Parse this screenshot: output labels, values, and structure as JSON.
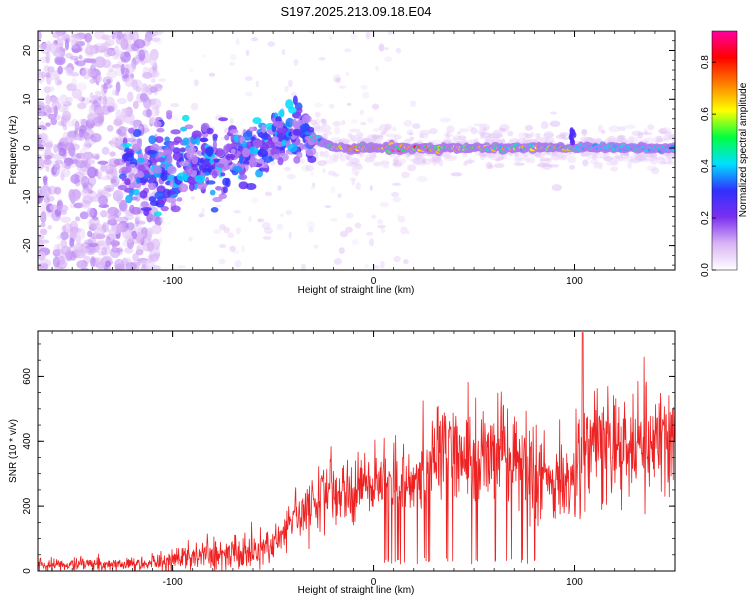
{
  "title": "S197.2025.213.09.18.E04",
  "chart_data": [
    {
      "type": "heatmap",
      "name": "spectrogram",
      "xlabel": "Height of straight line (km)",
      "ylabel": "Frequency (Hz)",
      "xlim": [
        -167,
        150
      ],
      "ylim": [
        -25,
        24
      ],
      "xticks": [
        -100,
        0,
        100
      ],
      "yticks": [
        -20,
        -10,
        0,
        10,
        20
      ],
      "colorbar": {
        "label": "Normalized spectral amplitude",
        "range": [
          0,
          0.92
        ],
        "ticks": [
          0.0,
          0.2,
          0.4,
          0.6,
          0.8
        ],
        "tick_labels": [
          "0.0",
          "0.2",
          "0.4",
          "0.6",
          "0.8"
        ],
        "colormap": [
          "#ffffff",
          "#d9b3f5",
          "#7b2ff0",
          "#3030ff",
          "#00e0ff",
          "#00ff40",
          "#ffff00",
          "#ff8000",
          "#ff0000",
          "#ff00a0"
        ]
      },
      "ridge": {
        "x": [
          -125,
          -100,
          -75,
          -55,
          -40,
          -30,
          -20,
          0,
          50,
          100,
          150
        ],
        "y": [
          -4.5,
          -3.5,
          -2.5,
          0,
          4,
          2,
          0,
          0,
          0,
          0,
          0
        ]
      },
      "grid": false
    },
    {
      "type": "line",
      "name": "snr",
      "xlabel": "Height of straight line (km)",
      "ylabel": "SNR (10 * v/v)",
      "xlim": [
        -167,
        150
      ],
      "ylim": [
        0,
        740
      ],
      "xticks": [
        -100,
        0,
        100
      ],
      "yticks": [
        0,
        200,
        400,
        600
      ],
      "color": "#ee2222",
      "series": [
        {
          "x": [
            -167,
            -150,
            -130,
            -110,
            -100,
            -90,
            -80,
            -70,
            -60,
            -50,
            -45,
            -40,
            -35,
            -30,
            -25,
            -20,
            -15,
            -10,
            -5,
            0,
            5,
            10,
            15,
            20,
            25,
            30,
            35,
            40,
            45,
            50,
            55,
            60,
            65,
            70,
            75,
            80,
            85,
            90,
            95,
            100,
            105,
            110,
            120,
            130,
            140,
            150
          ],
          "values": [
            18,
            20,
            22,
            28,
            35,
            42,
            50,
            55,
            62,
            80,
            110,
            150,
            185,
            215,
            225,
            240,
            245,
            240,
            250,
            260,
            270,
            275,
            265,
            275,
            320,
            360,
            375,
            380,
            370,
            360,
            355,
            350,
            345,
            330,
            320,
            300,
            300,
            290,
            285,
            280,
            390,
            395,
            395,
            400,
            395,
            395
          ]
        }
      ],
      "grid": false
    }
  ]
}
